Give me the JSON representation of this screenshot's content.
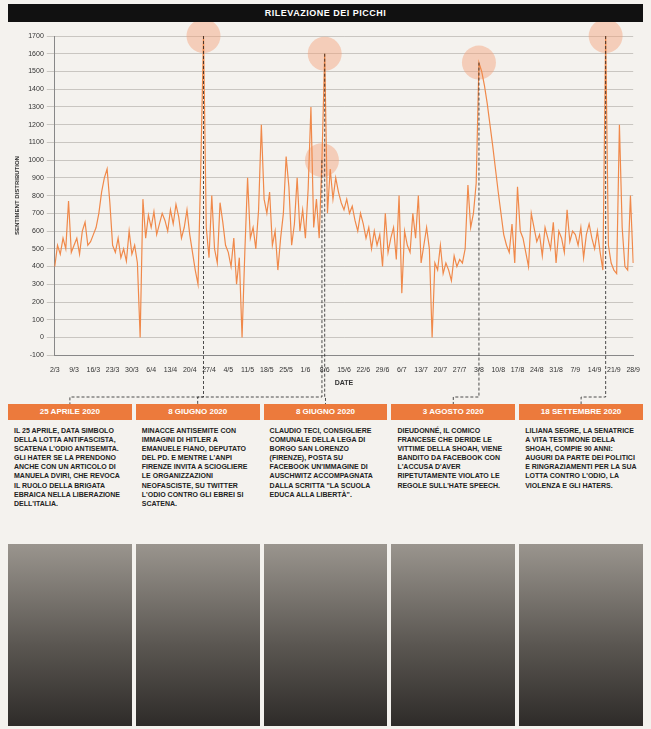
{
  "chart_data": {
    "type": "line",
    "title": "RILEVAZIONE DEI PICCHI",
    "x_label": "DATE",
    "y_label": "SENTIMENT DISTRIBUTION",
    "color": "#f0894a",
    "grid": true,
    "ylim": [
      -100,
      1700
    ],
    "yticks": [
      -100,
      0,
      100,
      200,
      300,
      400,
      500,
      600,
      700,
      800,
      900,
      1000,
      1100,
      1200,
      1300,
      1400,
      1500,
      1600,
      1700
    ],
    "categories": [
      "2/3",
      null,
      null,
      null,
      null,
      null,
      null,
      "9/3",
      null,
      null,
      null,
      null,
      null,
      null,
      "16/3",
      null,
      null,
      null,
      null,
      null,
      null,
      "23/3",
      null,
      null,
      null,
      null,
      null,
      null,
      "30/3",
      null,
      null,
      null,
      null,
      null,
      null,
      "6/4",
      null,
      null,
      null,
      null,
      null,
      null,
      "13/4",
      null,
      null,
      null,
      null,
      null,
      null,
      "20/4",
      null,
      null,
      null,
      null,
      null,
      null,
      "27/4",
      null,
      null,
      null,
      null,
      null,
      null,
      "4/5",
      null,
      null,
      null,
      null,
      null,
      null,
      "11/5",
      null,
      null,
      null,
      null,
      null,
      null,
      "18/5",
      null,
      null,
      null,
      null,
      null,
      null,
      "25/5",
      null,
      null,
      null,
      null,
      null,
      null,
      "1/6",
      null,
      null,
      null,
      null,
      null,
      null,
      "8/6",
      null,
      null,
      null,
      null,
      null,
      null,
      "15/6",
      null,
      null,
      null,
      null,
      null,
      null,
      "22/6",
      null,
      null,
      null,
      null,
      null,
      null,
      "29/6",
      null,
      null,
      null,
      null,
      null,
      null,
      "6/7",
      null,
      null,
      null,
      null,
      null,
      null,
      "13/7",
      null,
      null,
      null,
      null,
      null,
      null,
      "20/7",
      null,
      null,
      null,
      null,
      null,
      null,
      "27/7",
      null,
      null,
      null,
      null,
      null,
      null,
      "3/8",
      null,
      null,
      null,
      null,
      null,
      null,
      "10/8",
      null,
      null,
      null,
      null,
      null,
      null,
      "17/8",
      null,
      null,
      null,
      null,
      null,
      null,
      "24/8",
      null,
      null,
      null,
      null,
      null,
      null,
      "31/8",
      null,
      null,
      null,
      null,
      null,
      null,
      "7/9",
      null,
      null,
      null,
      null,
      null,
      null,
      "14/9",
      null,
      null,
      null,
      null,
      null,
      null,
      "21/9",
      null,
      null,
      null,
      null,
      null,
      null,
      "28/9"
    ],
    "values": [
      400,
      520,
      470,
      560,
      500,
      770,
      480,
      520,
      560,
      470,
      600,
      650,
      520,
      540,
      580,
      620,
      700,
      820,
      900,
      950,
      760,
      520,
      480,
      560,
      450,
      500,
      430,
      600,
      470,
      520,
      420,
      0,
      780,
      560,
      690,
      620,
      710,
      580,
      640,
      700,
      660,
      600,
      720,
      640,
      750,
      680,
      560,
      620,
      720,
      580,
      480,
      380,
      300,
      950,
      1700,
      620,
      450,
      800,
      500,
      420,
      760,
      650,
      520,
      480,
      400,
      560,
      300,
      450,
      0,
      480,
      900,
      560,
      620,
      500,
      720,
      1200,
      780,
      700,
      820,
      520,
      600,
      380,
      560,
      700,
      1020,
      850,
      520,
      640,
      900,
      600,
      720,
      560,
      840,
      1300,
      620,
      780,
      560,
      1000,
      1600,
      700,
      950,
      780,
      900,
      820,
      760,
      720,
      780,
      700,
      740,
      660,
      600,
      700,
      640,
      560,
      620,
      500,
      600,
      520,
      580,
      400,
      700,
      480,
      560,
      620,
      440,
      800,
      250,
      600,
      520,
      480,
      700,
      560,
      800,
      420,
      520,
      620,
      500,
      0,
      420,
      380,
      520,
      360,
      420,
      380,
      320,
      460,
      400,
      440,
      420,
      500,
      860,
      620,
      700,
      870,
      1550,
      1500,
      1420,
      1320,
      1200,
      1080,
      950,
      820,
      700,
      580,
      520,
      480,
      640,
      420,
      850,
      600,
      560,
      480,
      400,
      700,
      620,
      540,
      580,
      460,
      620,
      560,
      500,
      650,
      420,
      600,
      560,
      480,
      720,
      540,
      600,
      580,
      520,
      620,
      450,
      580,
      640,
      560,
      500,
      600,
      480,
      380,
      1700,
      520,
      420,
      380,
      360,
      1200,
      620,
      400,
      380,
      800,
      420
    ],
    "annotations": [
      {
        "x": 54,
        "date": "25 APRILE 2020",
        "text": "IL 25 APRILE, DATA SIMBOLO DELLA LOTTA ANTIFASCISTA, SCATENA L'ODIO ANTISEMITA. GLI HATER SE LA PRENDONO ANCHE CON UN ARTICOLO DI MANUELA DVIRI, CHE REVOCA IL RUOLO DELLA BRIGATA EBRAICA NELLA LIBERAZIONE DELL'ITALIA."
      },
      {
        "x": 97,
        "date": "8 GIUGNO 2020",
        "text": "MINACCE ANTISEMITE CON IMMAGINI DI HITLER A EMANUELE FIANO, DEPUTATO DEL PD. E MENTRE L'ANPI FIRENZE INVITA A SCIOGLIERE LE ORGANIZZAZIONI NEOFASCISTE, SU TWITTER L'ODIO CONTRO GLI EBREI SI SCATENA."
      },
      {
        "x": 98,
        "date": "8 GIUGNO 2020",
        "text": "CLAUDIO TECI, CONSIGLIERE COMUNALE DELLA LEGA DI BORGO SAN LORENZO (FIRENZE), POSTA SU FACEBOOK UN'IMMAGINE DI AUSCHWITZ ACCOMPAGNATA DALLA SCRITTA \"LA SCUOLA EDUCA ALLA LIBERTÀ\"."
      },
      {
        "x": 154,
        "date": "3 AGOSTO 2020",
        "text": "DIEUDONNÉ, IL COMICO FRANCESE CHE DERIDE LE VITTIME DELLA SHOAH, VIENE BANDITO DA FACEBOOK CON L'ACCUSA D'AVER RIPETUTAMENTE VIOLATO LE REGOLE SULL'HATE SPEECH."
      },
      {
        "x": 200,
        "date": "18 SETTEMBRE 2020",
        "text": "LILIANA SEGRE, LA SENATRICE A VITA TESTIMONE DELLA SHOAH, COMPIE 90 ANNI: AUGURI DA PARTE DEI POLITICI E RINGRAZIAMENTI PER LA SUA LOTTA CONTRO L'ODIO, LA VIOLENZA E GLI HATERS."
      }
    ]
  }
}
